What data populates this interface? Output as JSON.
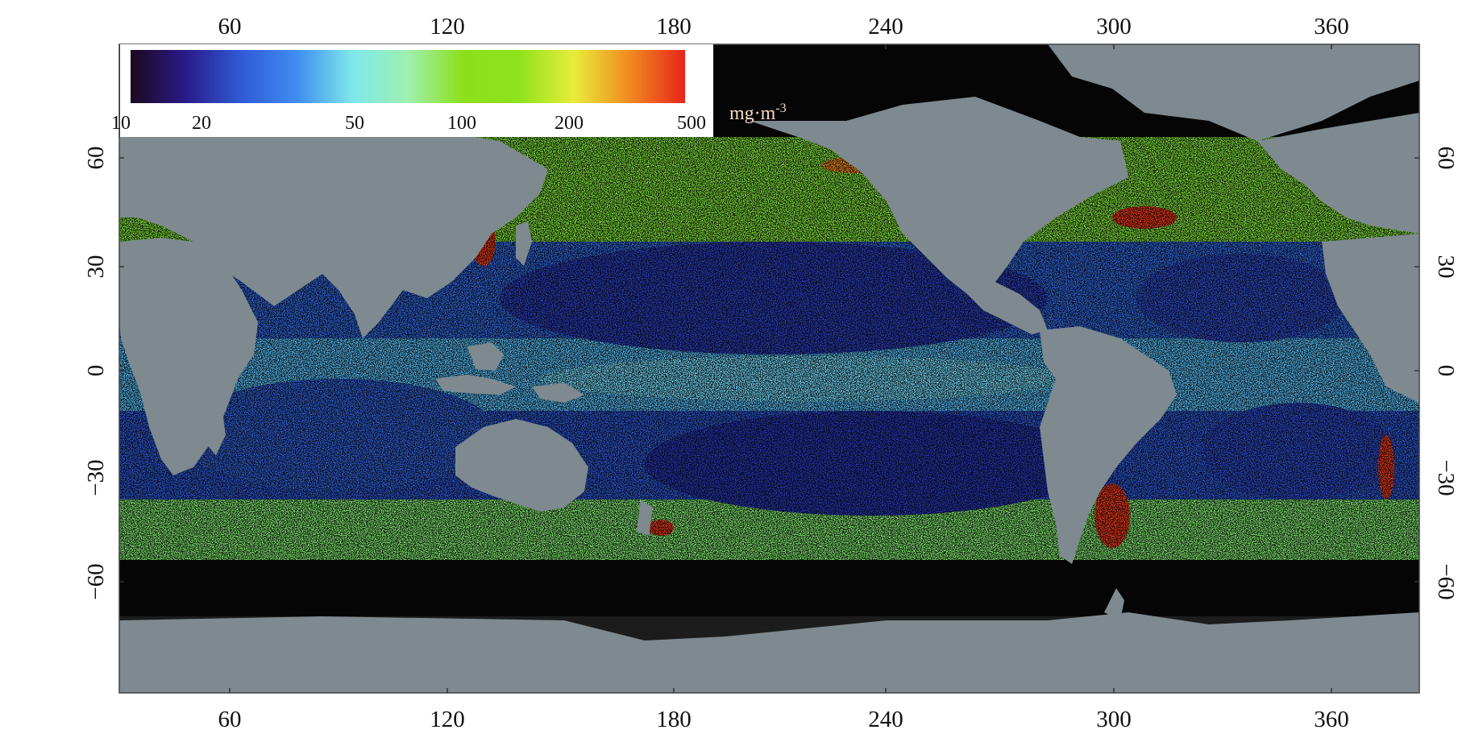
{
  "map": {
    "colors": {
      "land": "#7e8a90",
      "no_data": "#050505",
      "frame": "#444444"
    },
    "x_axis": {
      "tick_labels": [
        "60",
        "120",
        "180",
        "240",
        "300",
        "360"
      ]
    },
    "y_axis": {
      "tick_labels": [
        "60",
        "30",
        "0",
        "−30",
        "−60"
      ]
    },
    "colorbar": {
      "tick_labels": [
        "10",
        "20",
        "50",
        "100",
        "200",
        "500"
      ],
      "unit": "mg·m",
      "unit_exponent": "-3",
      "stops": [
        "#1a0a1e",
        "#2a1a8a",
        "#2f5bd6",
        "#3f8df0",
        "#7fe8ea",
        "#9ef0b0",
        "#8ce01a",
        "#8fe31c",
        "#e8ec3a",
        "#f08a20",
        "#e8241a"
      ]
    }
  }
}
